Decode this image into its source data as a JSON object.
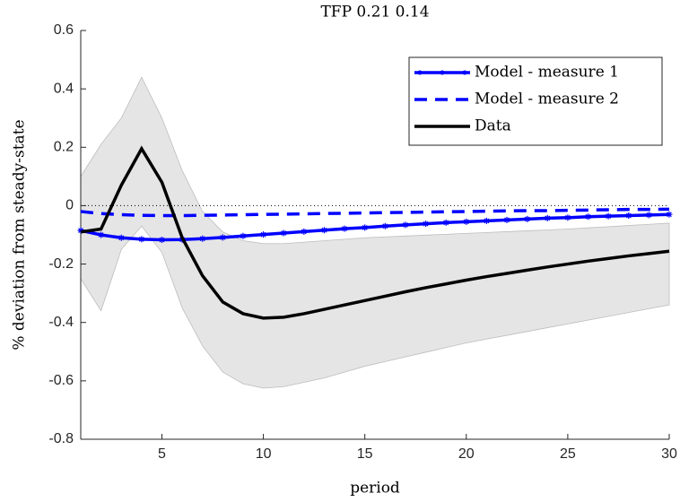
{
  "chart_data": {
    "type": "line",
    "title": "TFP 0.21 0.14",
    "x_label": "period",
    "y_label": "% deviation from steady-state",
    "x": [
      1,
      2,
      3,
      4,
      5,
      6,
      7,
      8,
      9,
      10,
      11,
      12,
      13,
      14,
      15,
      16,
      17,
      18,
      19,
      20,
      21,
      22,
      23,
      24,
      25,
      26,
      27,
      28,
      29,
      30
    ],
    "band": {
      "color": "#e5e5e5",
      "upper": [
        0.1,
        0.21,
        0.3,
        0.44,
        0.3,
        0.12,
        -0.02,
        -0.09,
        -0.12,
        -0.13,
        -0.13,
        -0.125,
        -0.12,
        -0.115,
        -0.11,
        -0.107,
        -0.104,
        -0.101,
        -0.098,
        -0.095,
        -0.092,
        -0.089,
        -0.086,
        -0.083,
        -0.08,
        -0.076,
        -0.072,
        -0.068,
        -0.064,
        -0.06
      ],
      "lower": [
        -0.25,
        -0.36,
        -0.15,
        -0.07,
        -0.16,
        -0.35,
        -0.48,
        -0.57,
        -0.61,
        -0.625,
        -0.62,
        -0.605,
        -0.59,
        -0.57,
        -0.55,
        -0.534,
        -0.518,
        -0.502,
        -0.486,
        -0.47,
        -0.457,
        -0.444,
        -0.431,
        -0.418,
        -0.405,
        -0.392,
        -0.379,
        -0.366,
        -0.353,
        -0.34
      ]
    },
    "series": [
      {
        "name": "Model - measure 1",
        "color": "#0000ff",
        "line_style": "solid",
        "marker": "*",
        "values": [
          -0.085,
          -0.1,
          -0.11,
          -0.115,
          -0.117,
          -0.116,
          -0.113,
          -0.109,
          -0.104,
          -0.099,
          -0.094,
          -0.089,
          -0.084,
          -0.079,
          -0.075,
          -0.07,
          -0.066,
          -0.062,
          -0.058,
          -0.055,
          -0.052,
          -0.049,
          -0.046,
          -0.043,
          -0.041,
          -0.038,
          -0.036,
          -0.034,
          -0.032,
          -0.03
        ]
      },
      {
        "name": "Model - measure 2",
        "color": "#0000ff",
        "line_style": "dashed",
        "marker": "none",
        "values": [
          -0.02,
          -0.027,
          -0.031,
          -0.033,
          -0.034,
          -0.034,
          -0.033,
          -0.032,
          -0.031,
          -0.03,
          -0.029,
          -0.028,
          -0.027,
          -0.026,
          -0.025,
          -0.024,
          -0.023,
          -0.022,
          -0.021,
          -0.02,
          -0.019,
          -0.018,
          -0.017,
          -0.017,
          -0.016,
          -0.015,
          -0.014,
          -0.013,
          -0.013,
          -0.012
        ]
      },
      {
        "name": "Data",
        "color": "#000000",
        "line_style": "solid",
        "marker": "none",
        "values": [
          -0.09,
          -0.08,
          0.07,
          0.195,
          0.08,
          -0.11,
          -0.24,
          -0.33,
          -0.37,
          -0.385,
          -0.382,
          -0.37,
          -0.355,
          -0.34,
          -0.325,
          -0.31,
          -0.295,
          -0.281,
          -0.268,
          -0.255,
          -0.243,
          -0.232,
          -0.221,
          -0.21,
          -0.2,
          -0.19,
          -0.181,
          -0.172,
          -0.164,
          -0.156
        ]
      }
    ],
    "xlim": [
      1,
      30
    ],
    "ylim": [
      -0.8,
      0.6
    ],
    "xticks": [
      5,
      10,
      15,
      20,
      25,
      30
    ],
    "yticks": [
      -0.8,
      -0.6,
      -0.4,
      -0.2,
      0,
      0.2,
      0.4,
      0.6
    ],
    "zero_line": true,
    "legend": "northeast"
  }
}
